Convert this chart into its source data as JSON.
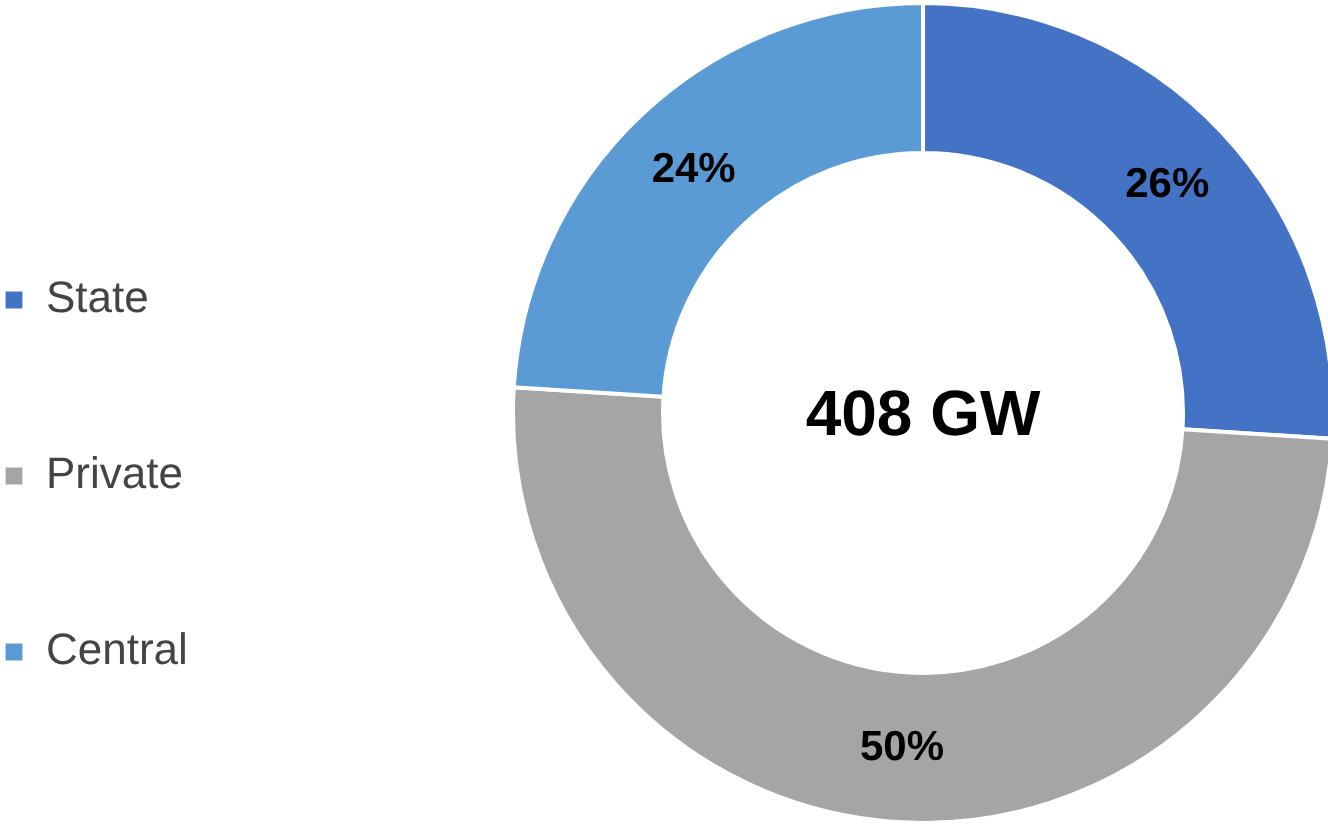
{
  "chart_data": {
    "type": "donut",
    "categories": [
      "State",
      "Private",
      "Central"
    ],
    "values": [
      26,
      50,
      24
    ],
    "colors": [
      "#4472c4",
      "#a5a5a5",
      "#5b9bd5"
    ],
    "value_labels": [
      "26%",
      "50%",
      "24%"
    ],
    "annotations": [
      "408 GW"
    ],
    "legend": "left"
  }
}
